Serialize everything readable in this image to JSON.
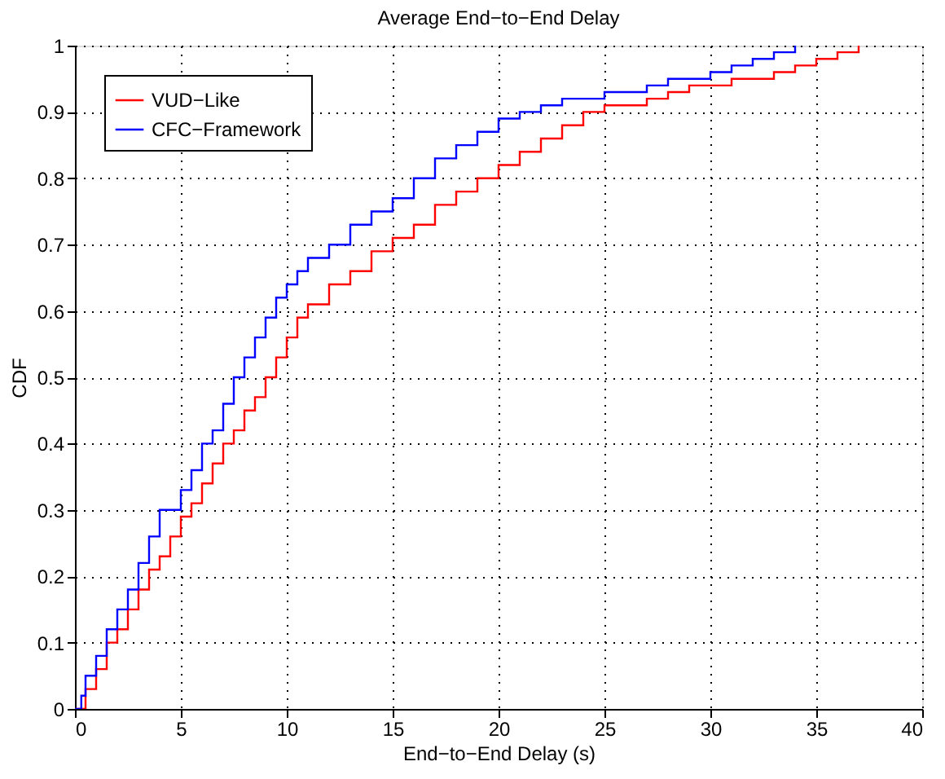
{
  "chart_data": {
    "type": "step",
    "title": "Average End−to−End Delay",
    "xlabel": "End−to−End Delay (s)",
    "ylabel": "CDF",
    "xlim": [
      0,
      40
    ],
    "xticks": [
      0,
      5,
      10,
      15,
      20,
      25,
      30,
      35,
      40
    ],
    "ylim": [
      0,
      1
    ],
    "yticks": [
      0,
      0.1,
      0.2,
      0.3,
      0.4,
      0.5,
      0.6,
      0.7,
      0.8,
      0.9,
      1
    ],
    "grid": true,
    "legend": "top left",
    "line_style": "solid",
    "marker": "none",
    "series": [
      {
        "name": "VUD−Like",
        "color": "#ff0000",
        "x": [
          0,
          0.5,
          1,
          1.5,
          2,
          2.5,
          3,
          3.5,
          4,
          4.5,
          5,
          5.5,
          6,
          6.5,
          7,
          7.5,
          8,
          8.5,
          9,
          9.5,
          10,
          10.5,
          11,
          12,
          13,
          14,
          15,
          16,
          17,
          18,
          19,
          20,
          21,
          22,
          23,
          24,
          25,
          27,
          28,
          29,
          31,
          33,
          34,
          35,
          36,
          37
        ],
        "values": [
          0,
          0.03,
          0.06,
          0.1,
          0.12,
          0.15,
          0.18,
          0.21,
          0.23,
          0.26,
          0.29,
          0.31,
          0.34,
          0.37,
          0.4,
          0.42,
          0.45,
          0.47,
          0.5,
          0.53,
          0.56,
          0.59,
          0.61,
          0.64,
          0.66,
          0.69,
          0.71,
          0.73,
          0.76,
          0.78,
          0.8,
          0.82,
          0.84,
          0.86,
          0.88,
          0.9,
          0.91,
          0.92,
          0.93,
          0.94,
          0.95,
          0.96,
          0.97,
          0.98,
          0.99,
          1.0
        ]
      },
      {
        "name": "CFC−Framework",
        "color": "#0000ff",
        "x": [
          0,
          0.3,
          0.5,
          1,
          1.5,
          2,
          2.5,
          3,
          3.5,
          4,
          5,
          5.5,
          6,
          6.5,
          7,
          7.5,
          8,
          8.5,
          9,
          9.5,
          10,
          10.5,
          11,
          12,
          13,
          14,
          15,
          16,
          17,
          18,
          19,
          20,
          21,
          22,
          23,
          25,
          27,
          28,
          30,
          31,
          32,
          33,
          34
        ],
        "values": [
          0,
          0.02,
          0.05,
          0.08,
          0.12,
          0.15,
          0.18,
          0.22,
          0.26,
          0.3,
          0.33,
          0.36,
          0.4,
          0.42,
          0.46,
          0.5,
          0.53,
          0.56,
          0.59,
          0.62,
          0.64,
          0.66,
          0.68,
          0.7,
          0.73,
          0.75,
          0.77,
          0.8,
          0.83,
          0.85,
          0.87,
          0.89,
          0.9,
          0.91,
          0.92,
          0.93,
          0.94,
          0.95,
          0.96,
          0.97,
          0.98,
          0.99,
          1.0
        ]
      }
    ]
  }
}
